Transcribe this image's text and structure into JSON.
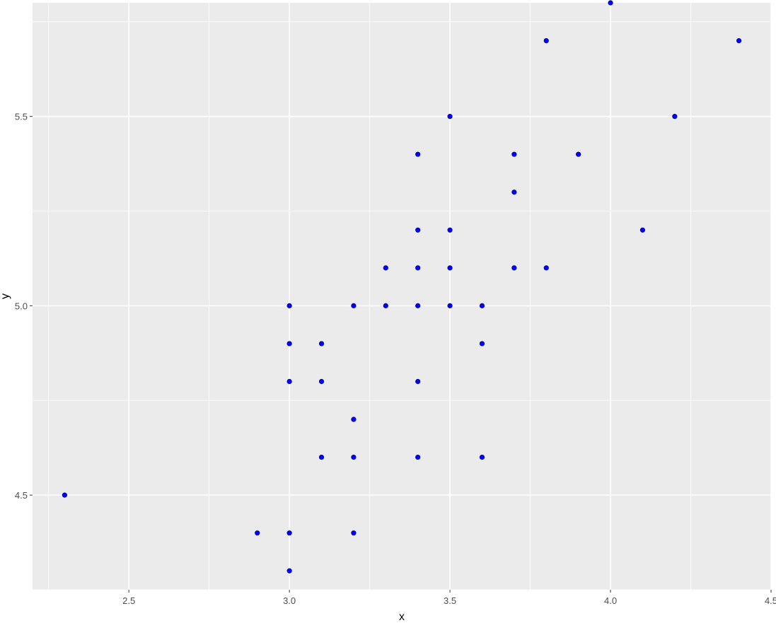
{
  "chart_data": {
    "type": "scatter",
    "title": "",
    "xlabel": "x",
    "ylabel": "y",
    "xlim": [
      2.2,
      4.5
    ],
    "ylim": [
      4.25,
      5.8
    ],
    "x_ticks": [
      2.5,
      3.0,
      3.5,
      4.0,
      4.5
    ],
    "x_tick_labels": [
      "2.5",
      "3.0",
      "3.5",
      "4.0",
      "4.5"
    ],
    "y_ticks": [
      4.5,
      5.0,
      5.5
    ],
    "y_tick_labels": [
      "4.5",
      "5.0",
      "5.5"
    ],
    "grid": true,
    "legend": "none",
    "panel_color": "#ebebeb",
    "grid_color": "#ffffff",
    "point_color": "#0000ff",
    "points": [
      {
        "x": 2.3,
        "y": 4.5
      },
      {
        "x": 2.9,
        "y": 4.4
      },
      {
        "x": 3.0,
        "y": 4.3
      },
      {
        "x": 3.0,
        "y": 4.4
      },
      {
        "x": 3.0,
        "y": 4.8
      },
      {
        "x": 3.0,
        "y": 4.9
      },
      {
        "x": 3.0,
        "y": 5.0
      },
      {
        "x": 3.1,
        "y": 4.6
      },
      {
        "x": 3.1,
        "y": 4.8
      },
      {
        "x": 3.1,
        "y": 4.9
      },
      {
        "x": 3.2,
        "y": 4.4
      },
      {
        "x": 3.2,
        "y": 4.6
      },
      {
        "x": 3.2,
        "y": 4.7
      },
      {
        "x": 3.2,
        "y": 5.0
      },
      {
        "x": 3.3,
        "y": 5.0
      },
      {
        "x": 3.3,
        "y": 5.1
      },
      {
        "x": 3.4,
        "y": 4.6
      },
      {
        "x": 3.4,
        "y": 4.8
      },
      {
        "x": 3.4,
        "y": 5.0
      },
      {
        "x": 3.4,
        "y": 5.1
      },
      {
        "x": 3.4,
        "y": 5.2
      },
      {
        "x": 3.4,
        "y": 5.4
      },
      {
        "x": 3.5,
        "y": 5.0
      },
      {
        "x": 3.5,
        "y": 5.1
      },
      {
        "x": 3.5,
        "y": 5.2
      },
      {
        "x": 3.5,
        "y": 5.5
      },
      {
        "x": 3.6,
        "y": 4.6
      },
      {
        "x": 3.6,
        "y": 4.9
      },
      {
        "x": 3.6,
        "y": 5.0
      },
      {
        "x": 3.7,
        "y": 5.1
      },
      {
        "x": 3.7,
        "y": 5.3
      },
      {
        "x": 3.7,
        "y": 5.4
      },
      {
        "x": 3.8,
        "y": 5.1
      },
      {
        "x": 3.8,
        "y": 5.7
      },
      {
        "x": 3.9,
        "y": 5.4
      },
      {
        "x": 4.0,
        "y": 5.8
      },
      {
        "x": 4.1,
        "y": 5.2
      },
      {
        "x": 4.2,
        "y": 5.5
      },
      {
        "x": 4.4,
        "y": 5.7
      }
    ]
  }
}
